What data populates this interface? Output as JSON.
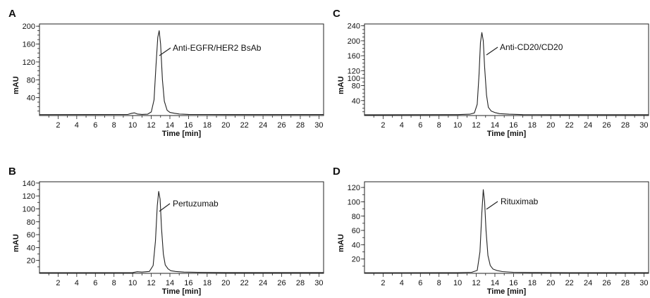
{
  "chart_data": [
    {
      "type": "line",
      "panel": "A",
      "xlabel": "Time [min]",
      "ylabel": "mAU",
      "xlim": [
        0,
        30.5
      ],
      "ylim": [
        0,
        205
      ],
      "xticks": [
        2,
        4,
        6,
        8,
        10,
        12,
        14,
        16,
        18,
        20,
        22,
        24,
        26,
        28,
        30
      ],
      "yticks": [
        40,
        80,
        120,
        160,
        200
      ],
      "peak_label": "Anti-EGFR/HER2 BsAb",
      "series": [
        {
          "x": [
            0,
            9.5,
            9.9,
            10.2,
            10.5,
            11,
            11.6,
            12.0,
            12.3,
            12.5,
            12.7,
            12.85,
            13.0,
            13.2,
            13.4,
            13.7,
            14.0,
            14.5,
            15,
            16,
            18,
            20,
            24,
            28,
            30.5
          ],
          "values": [
            2,
            2.5,
            5,
            6,
            3.5,
            2.5,
            3,
            8,
            35,
            110,
            175,
            190,
            160,
            80,
            32,
            12,
            7,
            5,
            3.5,
            2.5,
            2.3,
            2.2,
            2.2,
            2.2,
            2.2
          ]
        }
      ]
    },
    {
      "type": "line",
      "panel": "B",
      "xlabel": "Time [min]",
      "ylabel": "mAU",
      "xlim": [
        0,
        30.5
      ],
      "ylim": [
        0,
        142
      ],
      "xticks": [
        2,
        4,
        6,
        8,
        10,
        12,
        14,
        16,
        18,
        20,
        22,
        24,
        26,
        28,
        30
      ],
      "yticks": [
        20,
        40,
        60,
        80,
        100,
        120,
        140
      ],
      "peak_label": "Pertuzumab",
      "series": [
        {
          "x": [
            0,
            10.0,
            10.5,
            11,
            11.8,
            12.2,
            12.45,
            12.65,
            12.8,
            12.95,
            13.1,
            13.3,
            13.5,
            13.8,
            14.1,
            14.6,
            15.5,
            17,
            20,
            25,
            30.5
          ],
          "values": [
            1,
            1.2,
            2.5,
            2,
            3,
            12,
            50,
            105,
            127,
            115,
            70,
            30,
            13,
            7,
            4,
            3,
            2,
            1.5,
            1.2,
            1.2,
            1.2
          ]
        }
      ]
    },
    {
      "type": "line",
      "panel": "C",
      "xlabel": "Time [min]",
      "ylabel": "mAU",
      "xlim": [
        0,
        30.5
      ],
      "ylim": [
        0,
        245
      ],
      "xticks": [
        2,
        4,
        6,
        8,
        10,
        12,
        14,
        16,
        18,
        20,
        22,
        24,
        26,
        28,
        30
      ],
      "yticks": [
        40,
        80,
        100,
        120,
        160,
        200,
        240
      ],
      "peak_label": "Anti-CD20/CD20",
      "series": [
        {
          "x": [
            0,
            10,
            11.3,
            11.8,
            12.1,
            12.3,
            12.45,
            12.6,
            12.75,
            12.9,
            13.1,
            13.3,
            13.6,
            14.0,
            14.5,
            15.5,
            17,
            20,
            25,
            30.5
          ],
          "values": [
            2,
            2.5,
            3.5,
            7,
            30,
            110,
            195,
            222,
            200,
            130,
            55,
            22,
            12,
            8,
            5,
            3.5,
            2.5,
            2.3,
            2.3,
            2.3
          ]
        }
      ]
    },
    {
      "type": "line",
      "panel": "D",
      "xlabel": "Time [min]",
      "ylabel": "mAU",
      "xlim": [
        0,
        30.5
      ],
      "ylim": [
        0,
        128
      ],
      "xticks": [
        2,
        4,
        6,
        8,
        10,
        12,
        14,
        16,
        18,
        20,
        22,
        24,
        26,
        28,
        30
      ],
      "yticks": [
        20,
        40,
        60,
        80,
        100,
        120
      ],
      "peak_label": "Rituximab",
      "series": [
        {
          "x": [
            0,
            10,
            11.5,
            12.1,
            12.4,
            12.6,
            12.75,
            12.9,
            13.05,
            13.25,
            13.5,
            13.8,
            14.2,
            14.8,
            16,
            18,
            22,
            30.5
          ],
          "values": [
            0.8,
            1,
            1.5,
            4,
            30,
            85,
            117,
            100,
            60,
            25,
            11,
            6,
            4,
            2.5,
            1.5,
            1.2,
            1.0,
            1.0
          ]
        }
      ]
    }
  ]
}
